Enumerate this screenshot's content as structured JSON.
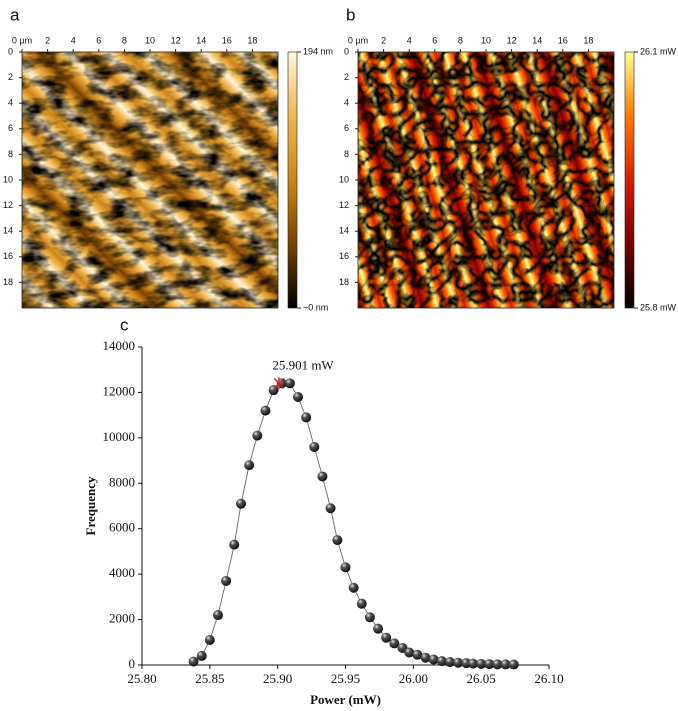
{
  "chart_data": [
    {
      "type": "image",
      "panel_label": "a",
      "xlim": [
        0,
        20
      ],
      "ylim": [
        0,
        20
      ],
      "xticks": [
        {
          "value": 0,
          "label": "0 µm"
        },
        2,
        4,
        6,
        8,
        10,
        12,
        14,
        16,
        18
      ],
      "yticks": [
        0,
        2,
        4,
        6,
        8,
        10,
        12,
        14,
        16,
        18
      ],
      "colorbar": {
        "lim": [
          0,
          194
        ],
        "ticks": [
          {
            "value": 194,
            "label": "194 nm"
          },
          {
            "value": 0,
            "label": "~0 nm"
          }
        ],
        "colors": [
          "#000000",
          "#7a4200",
          "#cf8418",
          "#f0b850",
          "#fff6dc"
        ]
      }
    },
    {
      "type": "image",
      "panel_label": "b",
      "xlim": [
        0,
        20
      ],
      "ylim": [
        0,
        20
      ],
      "xticks": [
        {
          "value": 0,
          "label": "0 µm"
        },
        2,
        4,
        6,
        8,
        10,
        12,
        14,
        16,
        18
      ],
      "yticks": [
        0,
        2,
        4,
        6,
        8,
        10,
        12,
        14,
        16,
        18
      ],
      "colorbar": {
        "lim": [
          25.8,
          26.1
        ],
        "ticks": [
          {
            "value": 26.1,
            "label": "26.1 mW"
          },
          {
            "value": 25.8,
            "label": "25.8 mW"
          }
        ],
        "colors": [
          "#000000",
          "#780000",
          "#d81c00",
          "#ff7a00",
          "#ffff90"
        ]
      }
    },
    {
      "type": "scatter",
      "panel_label": "c",
      "xlabel": "Power (mW)",
      "ylabel": "Frequency",
      "xlim": [
        25.8,
        26.1
      ],
      "ylim": [
        0,
        14000
      ],
      "xticks": [
        {
          "value": 25.8,
          "label": "25.80"
        },
        25.85,
        {
          "value": 25.9,
          "label": "25.90"
        },
        25.95,
        {
          "value": 26,
          "label": "26.00"
        },
        26.05,
        {
          "value": 26.1,
          "label": "26.10"
        }
      ],
      "yticks": [
        0,
        2000,
        4000,
        6000,
        8000,
        10000,
        12000,
        14000
      ],
      "x": [
        25.838,
        25.844,
        25.85,
        25.856,
        25.862,
        25.868,
        25.873,
        25.879,
        25.885,
        25.891,
        25.897,
        25.903,
        25.909,
        25.915,
        25.921,
        25.927,
        25.933,
        25.939,
        25.944,
        25.95,
        25.956,
        25.962,
        25.968,
        25.974,
        25.98,
        25.986,
        25.992,
        25.997,
        26.003,
        26.009,
        26.015,
        26.021,
        26.027,
        26.033,
        26.039,
        26.044,
        26.05,
        26.056,
        26.062,
        26.068,
        26.074
      ],
      "values": [
        150,
        400,
        1100,
        2200,
        3700,
        5300,
        7100,
        8800,
        10100,
        11200,
        12100,
        12400,
        12400,
        11800,
        10900,
        9600,
        8300,
        6900,
        5500,
        4300,
        3400,
        2700,
        2100,
        1600,
        1200,
        950,
        750,
        550,
        450,
        320,
        240,
        170,
        130,
        100,
        80,
        60,
        50,
        40,
        30,
        25,
        20
      ],
      "color": "#111111",
      "line_color": "#666666",
      "annotation": {
        "text": "25.901 mW",
        "x": 25.901,
        "y": 12400,
        "color": "#cc2a2a"
      }
    }
  ]
}
